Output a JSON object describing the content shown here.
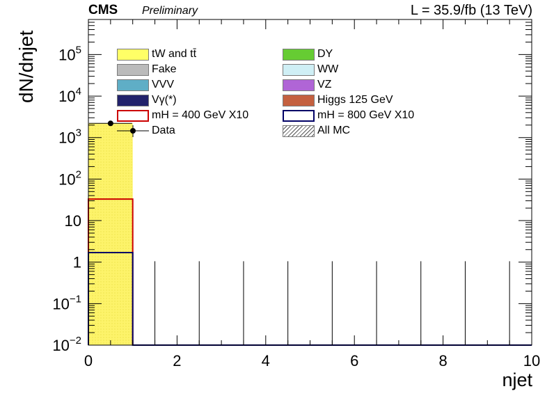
{
  "header": {
    "experiment": "CMS",
    "status": "Preliminary",
    "lumi": "L = 35.9/fb (13 TeV)"
  },
  "legend": [
    {
      "label": "tW and tt̄",
      "color": "#ffff66",
      "style": "fill"
    },
    {
      "label": "DY",
      "color": "#66cc33",
      "style": "fill"
    },
    {
      "label": "Fake",
      "color": "#bbbbbb",
      "style": "fill"
    },
    {
      "label": "WW",
      "color": "#cfeff5",
      "style": "fill"
    },
    {
      "label": "VVV",
      "color": "#5faec6",
      "style": "fill"
    },
    {
      "label": "VZ",
      "color": "#b065d6",
      "style": "fill"
    },
    {
      "label": "Vγ(*)",
      "color": "#22226b",
      "style": "fill"
    },
    {
      "label": "Higgs 125 GeV",
      "color": "#c4603f",
      "style": "fill"
    },
    {
      "label": "mH = 400 GeV X10",
      "color": "#cc0000",
      "style": "line"
    },
    {
      "label": "mH = 800 GeV X10",
      "color": "#000066",
      "style": "line"
    },
    {
      "label": "Data",
      "color": "#000000",
      "style": "marker"
    },
    {
      "label": "All MC",
      "color": "#555555",
      "style": "hatch"
    }
  ],
  "chart_data": {
    "type": "bar",
    "xlabel": "njet",
    "ylabel": "dN/dnjet",
    "xlim": [
      0,
      10
    ],
    "ylim": [
      0.01,
      700000
    ],
    "yscale": "log",
    "x_ticks": [
      0,
      2,
      4,
      6,
      8,
      10
    ],
    "y_ticks": [
      {
        "value": 0.01,
        "label": "10",
        "sup": "−2"
      },
      {
        "value": 0.1,
        "label": "10",
        "sup": "−1"
      },
      {
        "value": 1,
        "label": "1",
        "sup": ""
      },
      {
        "value": 10,
        "label": "10",
        "sup": ""
      },
      {
        "value": 100,
        "label": "10",
        "sup": "2"
      },
      {
        "value": 1000,
        "label": "10",
        "sup": "3"
      },
      {
        "value": 10000,
        "label": "10",
        "sup": "4"
      },
      {
        "value": 100000,
        "label": "10",
        "sup": "5"
      }
    ],
    "bin_edges": [
      0,
      1,
      2,
      3,
      4,
      5,
      6,
      7,
      8,
      9,
      10
    ],
    "stacked_background_total": [
      2200,
      0.01,
      0.01,
      0.01,
      0.01,
      0.01,
      0.01,
      0.01,
      0.01,
      0.01
    ],
    "signal_mH400_x10": [
      33,
      0.01,
      0.01,
      0.01,
      0.01,
      0.01,
      0.01,
      0.01,
      0.01,
      0.01
    ],
    "signal_mH800_x10": [
      1.7,
      0.01,
      0.01,
      0.01,
      0.01,
      0.01,
      0.01,
      0.01,
      0.01,
      0.01
    ],
    "data": {
      "x": [
        0.5,
        1.5,
        2.5,
        3.5,
        4.5,
        5.5,
        6.5,
        7.5,
        8.5,
        9.5
      ],
      "y": [
        2200,
        0,
        0,
        0,
        0,
        0,
        0,
        0,
        0,
        0
      ],
      "err_up": [
        47,
        1.05,
        1.05,
        1.05,
        1.05,
        1.05,
        1.05,
        1.05,
        1.05,
        1.05
      ]
    }
  }
}
